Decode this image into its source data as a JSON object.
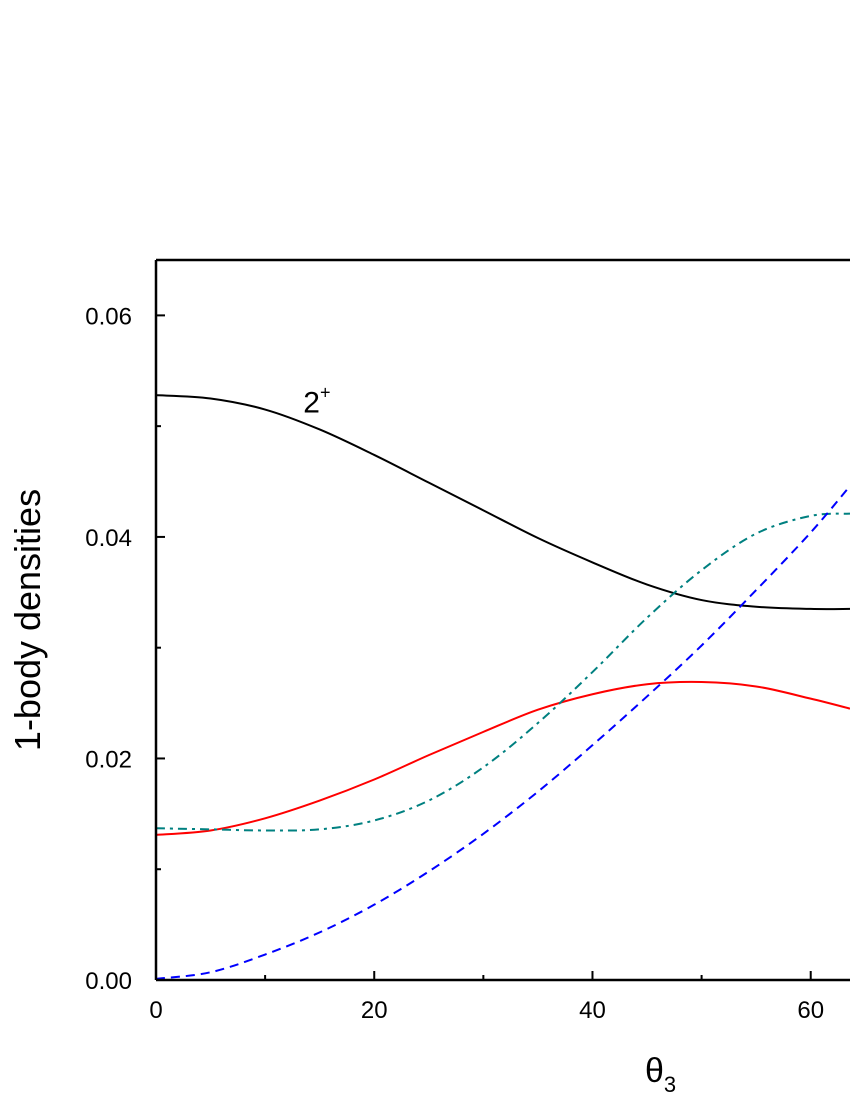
{
  "chart_data": {
    "type": "line",
    "title": "",
    "xlabel": "θ",
    "xlabel_sub": "3",
    "ylabel": "1-body densities",
    "xlim": [
      0,
      63.6
    ],
    "ylim": [
      0,
      0.065
    ],
    "xticks": [
      0,
      20,
      40,
      60
    ],
    "xtick_labels": [
      "0",
      "20",
      "40",
      "60"
    ],
    "yticks": [
      0,
      0.02,
      0.04,
      0.06
    ],
    "ytick_labels": [
      "0.00",
      "0.02",
      "0.04",
      "0.06"
    ],
    "grid": false,
    "annotations": [
      {
        "text": "2",
        "sup": "+",
        "x": 13.5,
        "y": 0.0525
      }
    ],
    "series": [
      {
        "color": "#000000",
        "style": "solid",
        "x": [
          0,
          5,
          10,
          15,
          20,
          25,
          30,
          35,
          40,
          45,
          50,
          55,
          60,
          63.6
        ],
        "y": [
          0.0528,
          0.0525,
          0.0515,
          0.0497,
          0.0474,
          0.0449,
          0.0424,
          0.0399,
          0.0377,
          0.0357,
          0.0343,
          0.0337,
          0.0335,
          0.0335
        ]
      },
      {
        "color": "#ff0000",
        "style": "solid",
        "x": [
          0,
          5,
          10,
          15,
          20,
          25,
          30,
          35,
          40,
          45,
          50,
          55,
          60,
          63.6
        ],
        "y": [
          0.0131,
          0.0135,
          0.0146,
          0.0162,
          0.0181,
          0.0203,
          0.0224,
          0.0244,
          0.0258,
          0.0267,
          0.0269,
          0.0265,
          0.0254,
          0.0245
        ]
      },
      {
        "color": "#008080",
        "style": "dashdot",
        "x": [
          0,
          5,
          10,
          15,
          20,
          25,
          30,
          35,
          40,
          45,
          50,
          55,
          60,
          63.6
        ],
        "y": [
          0.0137,
          0.0136,
          0.0135,
          0.0136,
          0.0144,
          0.0162,
          0.0192,
          0.0232,
          0.0278,
          0.0327,
          0.037,
          0.0403,
          0.0419,
          0.0421
        ]
      },
      {
        "color": "#0000ff",
        "style": "dashed",
        "x": [
          0,
          5,
          10,
          15,
          20,
          25,
          30,
          35,
          40,
          45,
          50,
          55,
          60,
          63.6
        ],
        "y": [
          0.0001,
          0.0007,
          0.0023,
          0.0043,
          0.0068,
          0.0098,
          0.0132,
          0.017,
          0.0212,
          0.0256,
          0.0302,
          0.0352,
          0.0404,
          0.0446
        ]
      }
    ]
  }
}
